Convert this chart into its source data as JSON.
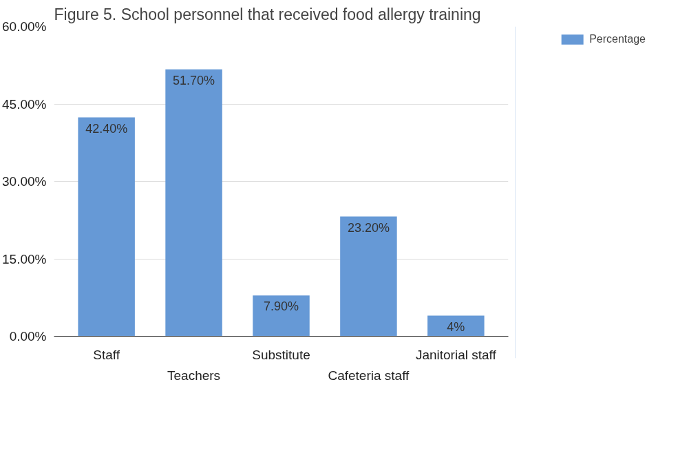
{
  "chart_data": {
    "type": "bar",
    "title": "Figure 5. School personnel that received food allergy training",
    "categories": [
      "Staff",
      "Teachers",
      "Substitute",
      "Cafeteria staff",
      "Janitorial staff"
    ],
    "series": [
      {
        "name": "Percentage",
        "color": "#6699d6",
        "values": [
          42.4,
          51.7,
          7.9,
          23.2,
          4
        ],
        "value_labels": [
          "42.40%",
          "51.70%",
          "7.90%",
          "23.20%",
          "4%"
        ]
      }
    ],
    "ylim": [
      0,
      60
    ],
    "yticks": [
      {
        "value": 0,
        "label": "0.00%"
      },
      {
        "value": 15,
        "label": "15.00%"
      },
      {
        "value": 30,
        "label": "30.00%"
      },
      {
        "value": 45,
        "label": "45.00%"
      },
      {
        "value": 60,
        "label": "60.00%"
      }
    ],
    "grid": "y",
    "legend": "top right"
  }
}
